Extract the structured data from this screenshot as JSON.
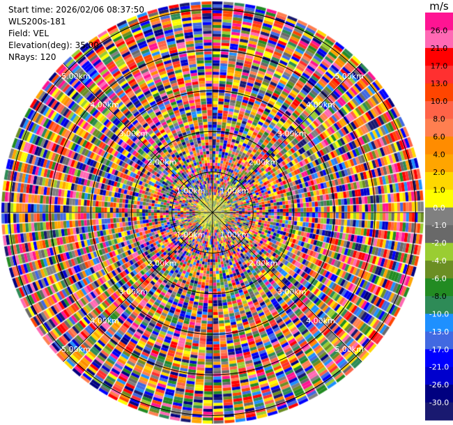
{
  "info": {
    "start_time": "Start time: 2026/02/06 08:37:50",
    "device": "WLS200s-181",
    "field": "Field: VEL",
    "elevation": "Elevation(deg): 35.00",
    "nrays": "NRays: 120"
  },
  "colorbar": {
    "unit": "m/s",
    "ticks": [
      "26.0",
      "21.0",
      "17.0",
      "13.0",
      "10.0",
      "8.0",
      "6.0",
      "4.0",
      "2.0",
      "1.0",
      "0.0",
      "-1.0",
      "-2.0",
      "-4.0",
      "-6.0",
      "-8.0",
      "-10.0",
      "-13.0",
      "-17.0",
      "-21.0",
      "-26.0",
      "-30.0"
    ],
    "colors": [
      "#ff1493",
      "#ff69b4",
      "#ff0000",
      "#ff3030",
      "#ff4500",
      "#ff6347",
      "#ff7f50",
      "#ff8c00",
      "#ffa500",
      "#ffd700",
      "#ffff00",
      "#808080",
      "#696969",
      "#9acd32",
      "#6b8e23",
      "#228b22",
      "#2e8b57",
      "#1e90ff",
      "#4169e1",
      "#0000ff",
      "#0000cd",
      "#000080",
      "#191970"
    ]
  },
  "chart_data": {
    "type": "heatmap",
    "projection": "polar PPI",
    "field": "VEL",
    "nrays": 120,
    "range_rings_km": [
      1,
      2,
      3,
      4,
      5
    ],
    "ring_labels": [
      "1.00km",
      "2.00km",
      "3.00km",
      "4.00km",
      "5.00km"
    ],
    "value_range": [
      -30,
      26
    ],
    "grid": true
  }
}
